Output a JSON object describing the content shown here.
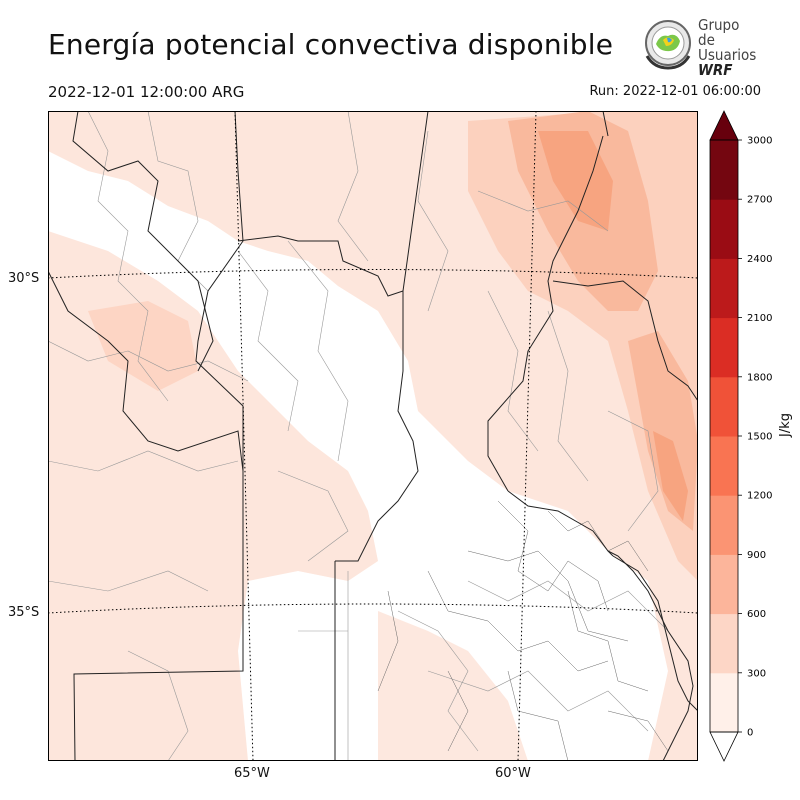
{
  "title": "Energía potencial convectiva disponible",
  "valid_time": "2022-12-01 12:00:00 ARG",
  "run_time": "Run: 2022-12-01 06:00:00",
  "logo": {
    "line1": "Grupo de",
    "line2": "Usuarios",
    "line3": "WRF"
  },
  "colorbar": {
    "unit": "J/kg",
    "ticks": [
      "0",
      "300",
      "600",
      "900",
      "1200",
      "1500",
      "1800",
      "2100",
      "2400",
      "2700",
      "3000"
    ],
    "colors": [
      "#fff0e9",
      "#fdd6c6",
      "#fcb59b",
      "#fb9473",
      "#f97452",
      "#f05238",
      "#db2d24",
      "#bc1a1b",
      "#9a0c14",
      "#740610"
    ],
    "under_color": "#ffffff",
    "over_color": "#67000d"
  },
  "axes": {
    "lat_labels": [
      "30°S",
      "35°S"
    ],
    "lon_labels": [
      "65°W",
      "60°W"
    ]
  },
  "map_colors": {
    "level1": "#fde6dc",
    "level2": "#fcd1be",
    "level3": "#f9b99d",
    "level4": "#f7a480"
  }
}
